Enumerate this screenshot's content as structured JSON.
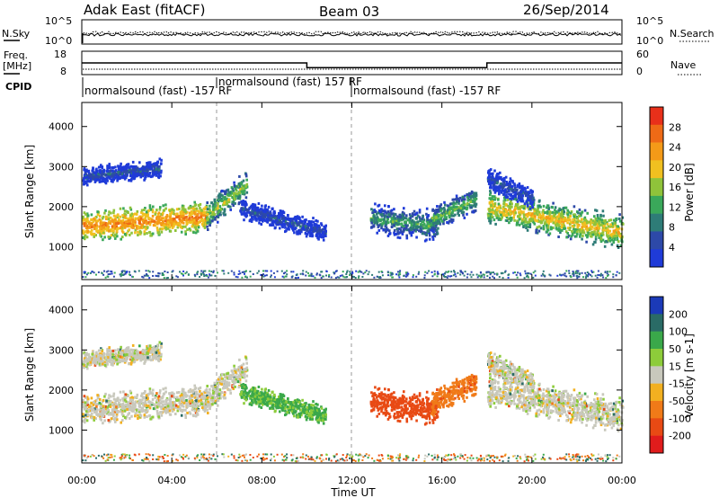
{
  "header": {
    "radar": "Adak East (fitACF)",
    "beam": "Beam 03",
    "date": "26/Sep/2014"
  },
  "top_panel": {
    "nsky_label": "N.Sky",
    "nsearch_label": "N.Search",
    "left_ticks": [
      "10^5",
      "10^0"
    ],
    "right_ticks": [
      "10^5",
      "10^0"
    ]
  },
  "freq_panel": {
    "freq_label_1": "Freq.",
    "freq_label_2": "[MHz]",
    "nave_label": "Nave",
    "left_ticks": [
      "18",
      "8"
    ],
    "right_ticks": [
      "60",
      "0"
    ],
    "cpid_label": "CPID",
    "cpid_segments": [
      "normalsound (fast) -157 RF",
      "normalsound (fast) 157 RF",
      "normalsound (fast) -157 RF"
    ]
  },
  "x_axis": {
    "label": "Time UT",
    "ticks": [
      "00:00",
      "04:00",
      "08:00",
      "12:00",
      "16:00",
      "20:00",
      "00:00"
    ]
  },
  "power_panel": {
    "ylabel": "Slant Range [km]",
    "yticks": [
      "4000",
      "3000",
      "2000",
      "1000"
    ],
    "colorbar_label": "Power [dB]",
    "colorbar_ticks": [
      "28",
      "24",
      "20",
      "16",
      "12",
      "8",
      "4"
    ],
    "colors": [
      "#1f3bd8",
      "#2d49a8",
      "#2e7c77",
      "#3aa85a",
      "#8fc33a",
      "#f0c020",
      "#f49a18",
      "#ee6a16",
      "#e8301a"
    ]
  },
  "velocity_panel": {
    "ylabel": "Slant Range [km]",
    "yticks": [
      "4000",
      "3000",
      "2000",
      "1000"
    ],
    "colorbar_label": "Velocity [m s-1]",
    "colorbar_ticks": [
      "200",
      "100",
      "50",
      "15",
      "-15",
      "-50",
      "-100",
      "-200"
    ],
    "colors": [
      "#1b3ab8",
      "#2a6b66",
      "#3aa84a",
      "#8dcc3a",
      "#c8c8bc",
      "#f2b020",
      "#f07a18",
      "#e84a14",
      "#e01c1c"
    ]
  },
  "chart_data": {
    "type": "heatmap",
    "x_range_hours": [
      0,
      24
    ],
    "y_range_km": [
      180,
      4600
    ],
    "frequency_mhz": [
      {
        "start": 0,
        "end": 10,
        "value": 13
      },
      {
        "start": 10,
        "end": 18,
        "value": 11
      },
      {
        "start": 18,
        "end": 24,
        "value": 13
      }
    ],
    "echo_bands": [
      {
        "from_h": 0,
        "to_h": 5.5,
        "range_start_km": 1500,
        "range_end_km": 1750,
        "thickness_km": 420,
        "power_db": 26,
        "velocity": 0
      },
      {
        "from_h": 5.5,
        "to_h": 7.3,
        "range_start_km": 1750,
        "range_end_km": 2550,
        "thickness_km": 380,
        "power_db": 18,
        "velocity": 0
      },
      {
        "from_h": 0,
        "to_h": 3.5,
        "range_start_km": 2750,
        "range_end_km": 2950,
        "thickness_km": 250,
        "power_db": 9,
        "velocity": 0
      },
      {
        "from_h": 7,
        "to_h": 10.8,
        "range_start_km": 1950,
        "range_end_km": 1350,
        "thickness_km": 280,
        "power_db": 8,
        "velocity": 40
      },
      {
        "from_h": 12.8,
        "to_h": 15.8,
        "range_start_km": 1700,
        "range_end_km": 1500,
        "thickness_km": 420,
        "power_db": 14,
        "velocity": -95
      },
      {
        "from_h": 15.5,
        "to_h": 17.5,
        "range_start_km": 1650,
        "range_end_km": 2200,
        "thickness_km": 360,
        "power_db": 16,
        "velocity": -60
      },
      {
        "from_h": 18,
        "to_h": 24,
        "range_start_km": 2000,
        "range_end_km": 1350,
        "thickness_km": 450,
        "power_db": 22,
        "velocity": 0
      },
      {
        "from_h": 18,
        "to_h": 20,
        "range_start_km": 2700,
        "range_end_km": 2200,
        "thickness_km": 300,
        "power_db": 8,
        "velocity": 0
      }
    ]
  }
}
